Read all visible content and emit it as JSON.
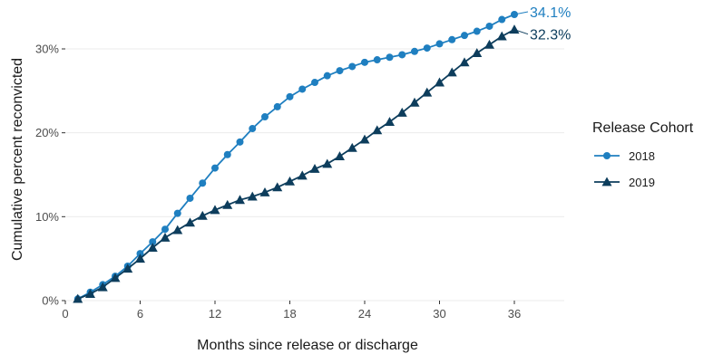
{
  "chart_data": {
    "type": "line",
    "xlabel": "Months since release or discharge",
    "ylabel": "Cumulative percent reconvicted",
    "xlim": [
      0,
      40
    ],
    "ylim": [
      0,
      34.1
    ],
    "x_ticks": [
      0,
      6,
      12,
      18,
      24,
      30,
      36
    ],
    "y_ticks": [
      0,
      10,
      20,
      30
    ],
    "y_tick_suffix": "%",
    "grid": true,
    "legend": {
      "title": "Release Cohort",
      "position": "right"
    },
    "series": [
      {
        "name": "2018",
        "color": "#1f7fc0",
        "marker": "circle",
        "end_label": "34.1%",
        "x": [
          1,
          2,
          3,
          4,
          5,
          6,
          7,
          8,
          9,
          10,
          11,
          12,
          13,
          14,
          15,
          16,
          17,
          18,
          19,
          20,
          21,
          22,
          23,
          24,
          25,
          26,
          27,
          28,
          29,
          30,
          31,
          32,
          33,
          34,
          35,
          36
        ],
        "values": [
          0.2,
          1.0,
          1.9,
          2.9,
          4.1,
          5.6,
          7.0,
          8.5,
          10.4,
          12.2,
          14.0,
          15.8,
          17.4,
          18.9,
          20.5,
          21.9,
          23.1,
          24.3,
          25.2,
          26.0,
          26.8,
          27.4,
          27.9,
          28.4,
          28.7,
          29.0,
          29.3,
          29.7,
          30.1,
          30.6,
          31.1,
          31.6,
          32.1,
          32.7,
          33.5,
          34.1
        ]
      },
      {
        "name": "2019",
        "color": "#0d3d5c",
        "marker": "triangle",
        "end_label": "32.3%",
        "x": [
          1,
          2,
          3,
          4,
          5,
          6,
          7,
          8,
          9,
          10,
          11,
          12,
          13,
          14,
          15,
          16,
          17,
          18,
          19,
          20,
          21,
          22,
          23,
          24,
          25,
          26,
          27,
          28,
          29,
          30,
          31,
          32,
          33,
          34,
          35,
          36
        ],
        "values": [
          0.2,
          0.8,
          1.6,
          2.7,
          3.8,
          5.0,
          6.3,
          7.5,
          8.4,
          9.3,
          10.1,
          10.8,
          11.4,
          12.0,
          12.4,
          12.9,
          13.5,
          14.2,
          14.9,
          15.7,
          16.3,
          17.2,
          18.2,
          19.2,
          20.3,
          21.3,
          22.4,
          23.6,
          24.8,
          26.0,
          27.2,
          28.4,
          29.5,
          30.5,
          31.5,
          32.3
        ]
      }
    ]
  }
}
